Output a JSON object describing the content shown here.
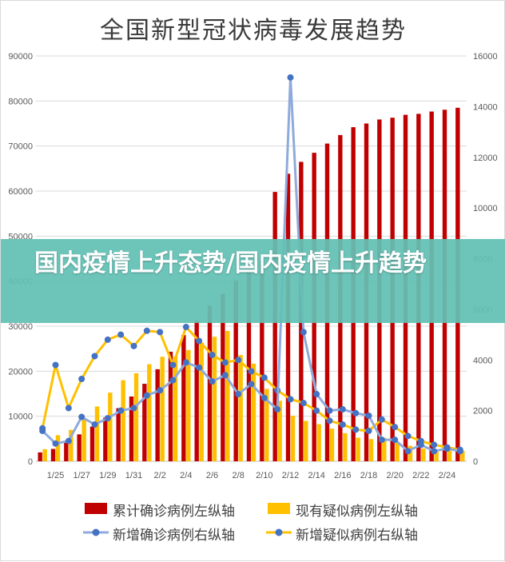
{
  "banner": {
    "text": "国内疫情上升态势/国内疫情上升趋势"
  },
  "colors": {
    "confirmed_bar": "#c00000",
    "suspected_bar": "#ffc000",
    "new_confirmed_line": "#8faadc",
    "new_confirmed_marker": "#4472c4",
    "new_suspected_line": "#ffc000",
    "new_suspected_marker": "#4472c4",
    "banner": "#62c1b5"
  },
  "chart_data": {
    "type": "bar+line",
    "title": "全国新型冠状病毒发展趋势",
    "y_left": {
      "min": 0,
      "max": 90000,
      "ticks": [
        "0",
        "10000",
        "20000",
        "30000",
        "40000",
        "50000",
        "60000",
        "70000",
        "80000",
        "90000"
      ]
    },
    "y_right": {
      "min": 0,
      "max": 16000,
      "ticks": [
        "0",
        "2000",
        "4000",
        "6000",
        "8000",
        "10000",
        "12000",
        "14000",
        "16000"
      ]
    },
    "x_tick_labels": [
      "1/25",
      "1/27",
      "1/29",
      "1/31",
      "2/2",
      "2/4",
      "2/6",
      "2/8",
      "2/10",
      "2/12",
      "2/14",
      "2/16",
      "2/18",
      "2/20",
      "2/22",
      "2/24"
    ],
    "categories": [
      "1/24",
      "1/25",
      "1/26",
      "1/27",
      "1/28",
      "1/29",
      "1/30",
      "1/31",
      "2/1",
      "2/2",
      "2/3",
      "2/4",
      "2/5",
      "2/6",
      "2/7",
      "2/8",
      "2/9",
      "2/10",
      "2/11",
      "2/12",
      "2/13",
      "2/14",
      "2/15",
      "2/16",
      "2/17",
      "2/18",
      "2/19",
      "2/20",
      "2/21",
      "2/22",
      "2/23",
      "2/24",
      "2/25"
    ],
    "series": [
      {
        "name": "累计确诊病例左纵轴",
        "type": "bar",
        "axis": "left",
        "values": [
          1975,
          2744,
          4515,
          5974,
          7711,
          9692,
          11791,
          14380,
          17205,
          20438,
          24324,
          28018,
          31161,
          34546,
          37198,
          40171,
          42638,
          44653,
          59804,
          63851,
          66492,
          68500,
          70548,
          72436,
          74185,
          75002,
          75891,
          76288,
          76936,
          77150,
          77658,
          78064,
          78497
        ]
      },
      {
        "name": "现有疑似病例左纵轴",
        "type": "bar",
        "axis": "left",
        "values": [
          2684,
          5794,
          6973,
          9239,
          12167,
          15238,
          17988,
          19544,
          21558,
          23214,
          23260,
          24702,
          26359,
          27657,
          28942,
          23589,
          21675,
          16067,
          13435,
          10109,
          8969,
          8228,
          7264,
          6242,
          5248,
          4922,
          5206,
          4148,
          3434,
          2824,
          2491,
          2358,
          2308
        ]
      },
      {
        "name": "新增确诊病例右纵轴",
        "type": "line",
        "axis": "right",
        "values": [
          1200,
          700,
          800,
          1750,
          1450,
          1700,
          2000,
          2100,
          2600,
          2800,
          3200,
          3900,
          3700,
          3150,
          3400,
          2650,
          3050,
          2500,
          2050,
          15150,
          5100,
          2650,
          2000,
          2050,
          1900,
          1800,
          850,
          850,
          400,
          650,
          400,
          500,
          400
        ]
      },
      {
        "name": "新增疑似病例右纵轴",
        "type": "line",
        "axis": "right",
        "values": [
          1300,
          3800,
          2100,
          3250,
          4150,
          4800,
          5000,
          4550,
          5150,
          5100,
          3800,
          5300,
          4750,
          4200,
          3900,
          4000,
          3550,
          3300,
          2800,
          2450,
          2300,
          2000,
          1600,
          1450,
          1250,
          1200,
          1650,
          1350,
          1000,
          800,
          650,
          550,
          450
        ]
      }
    ],
    "legend_position": "bottom",
    "grid": true
  }
}
